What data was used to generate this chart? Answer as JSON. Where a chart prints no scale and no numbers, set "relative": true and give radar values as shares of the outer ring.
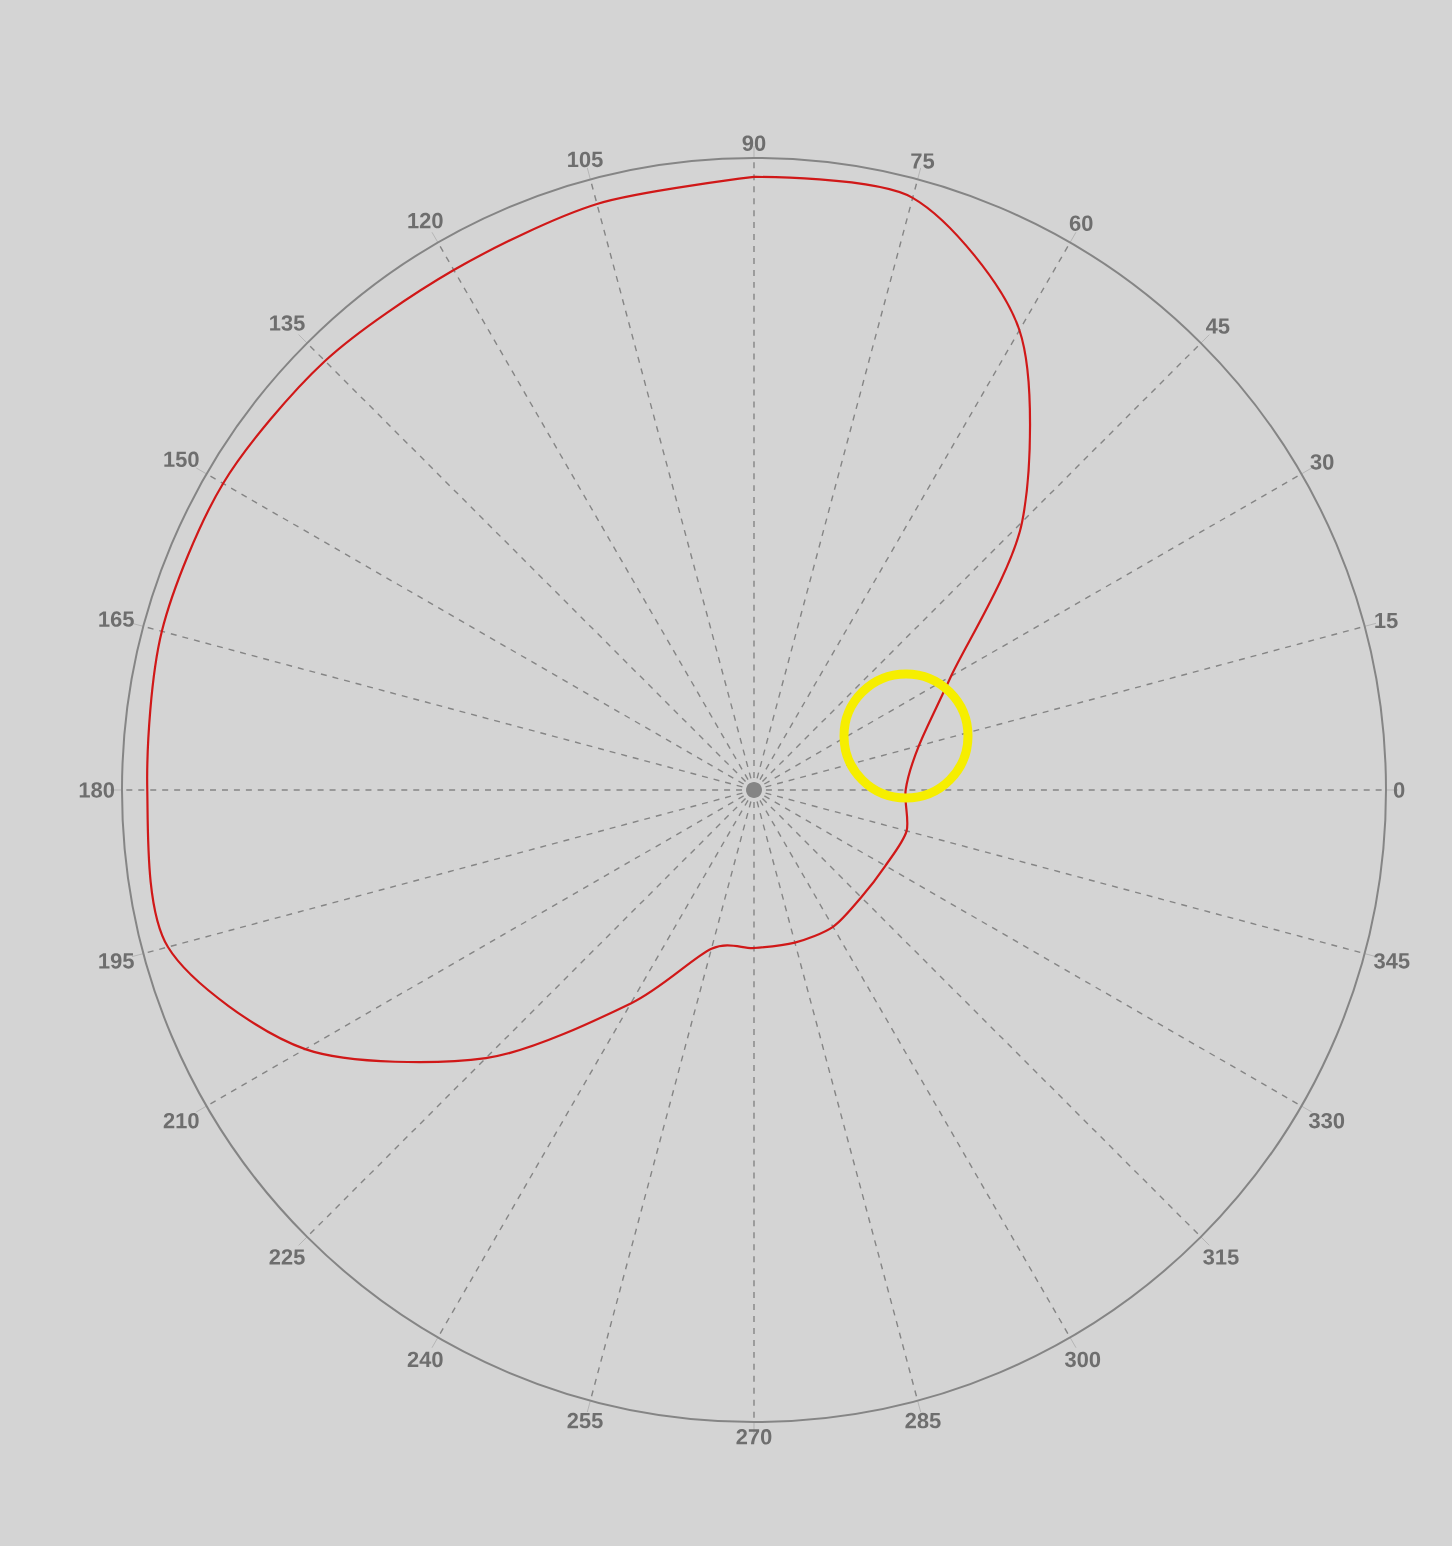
{
  "chart_data": {
    "type": "radar",
    "relative": true,
    "grid": "x",
    "categories": [
      "90",
      "75",
      "60",
      "45",
      "30",
      "15",
      "0",
      "345",
      "330",
      "315",
      "300",
      "285",
      "270",
      "255",
      "240",
      "225",
      "210",
      "195",
      "180",
      "165",
      "150",
      "135",
      "120",
      "105"
    ],
    "series": [
      {
        "color": "#d01818",
        "values": [
          0.97,
          0.97,
          0.84,
          0.6,
          0.36,
          0.27,
          0.24,
          0.25,
          0.24,
          0.24,
          0.25,
          0.25,
          0.25,
          0.26,
          0.39,
          0.6,
          0.82,
          0.96,
          0.96,
          0.97,
          0.97,
          0.96,
          0.95,
          0.96
        ]
      }
    ]
  }
}
